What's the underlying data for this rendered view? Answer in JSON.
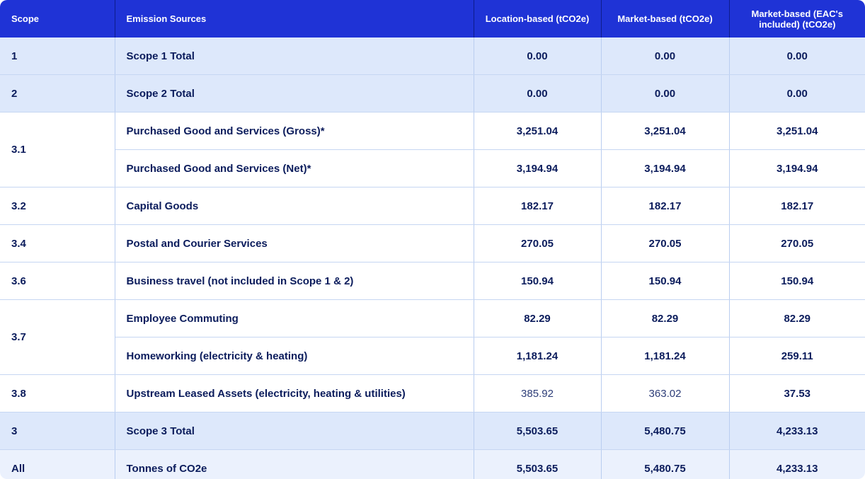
{
  "columns": {
    "scope": "Scope",
    "sources": "Emission Sources",
    "location": "Location-based (tCO2e)",
    "market": "Market-based (tCO2e)",
    "market_eac": "Market-based (EAC's included) (tCO2e)"
  },
  "rows": [
    {
      "scope": "1",
      "source": "Scope 1 Total",
      "location": "0.00",
      "market": "0.00",
      "market_eac": "0.00"
    },
    {
      "scope": "2",
      "source": "Scope 2 Total",
      "location": "0.00",
      "market": "0.00",
      "market_eac": "0.00"
    },
    {
      "scope": "3.1",
      "source": "Purchased Good and Services (Gross)*",
      "location": "3,251.04",
      "market": "3,251.04",
      "market_eac": "3,251.04"
    },
    {
      "scope": "",
      "source": "Purchased Good and Services (Net)*",
      "location": "3,194.94",
      "market": "3,194.94",
      "market_eac": "3,194.94"
    },
    {
      "scope": "3.2",
      "source": "Capital Goods",
      "location": "182.17",
      "market": "182.17",
      "market_eac": "182.17"
    },
    {
      "scope": "3.4",
      "source": "Postal and Courier Services",
      "location": "270.05",
      "market": "270.05",
      "market_eac": "270.05"
    },
    {
      "scope": "3.6",
      "source": "Business travel (not included in Scope 1 & 2)",
      "location": "150.94",
      "market": "150.94",
      "market_eac": "150.94"
    },
    {
      "scope": "3.7",
      "source": "Employee Commuting",
      "location": "82.29",
      "market": "82.29",
      "market_eac": "82.29"
    },
    {
      "scope": "",
      "source": "Homeworking (electricity & heating)",
      "location": "1,181.24",
      "market": "1,181.24",
      "market_eac": "259.11"
    },
    {
      "scope": "3.8",
      "source": "Upstream Leased Assets (electricity, heating & utilities)",
      "location": "385.92",
      "market": "363.02",
      "market_eac": "37.53"
    },
    {
      "scope": "3",
      "source": "Scope 3 Total",
      "location": "5,503.65",
      "market": "5,480.75",
      "market_eac": "4,233.13"
    },
    {
      "scope": "All",
      "source": "Tonnes of CO2e",
      "location": "5,503.65",
      "market": "5,480.75",
      "market_eac": "4,233.13"
    }
  ],
  "colors": {
    "header_bg": "#1f33d6",
    "total_row_bg": "#dde8fb",
    "all_row_bg": "#ebf1fd",
    "text": "#0b1c5c"
  }
}
